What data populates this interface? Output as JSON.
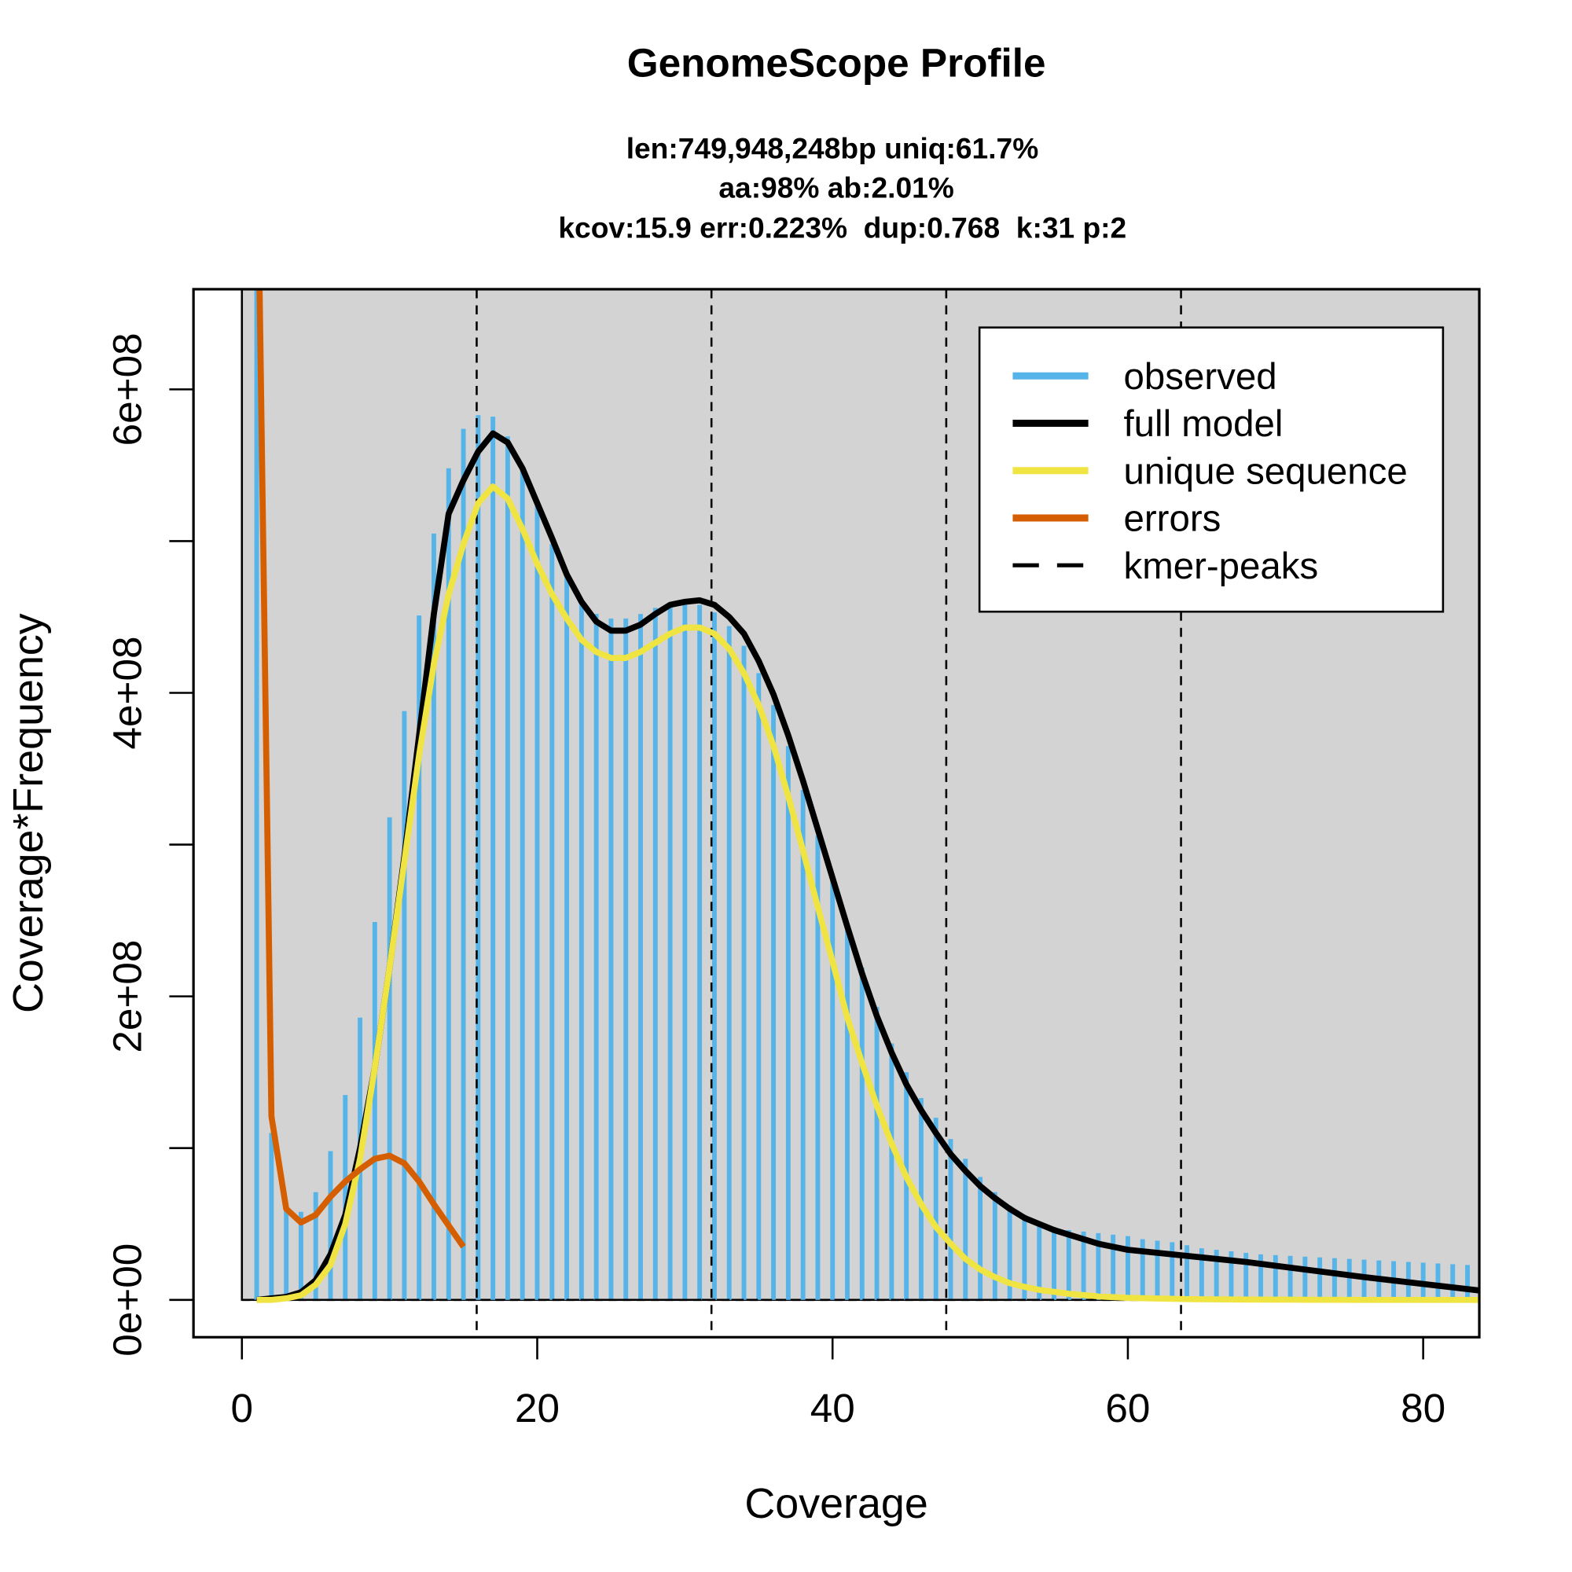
{
  "chart_data": {
    "type": "line",
    "title": "GenomeScope Profile",
    "subtitle": [
      "len:749,948,248bp uniq:61.7%",
      "aa:98% ab:2.01%",
      "kcov:15.9 err:0.223%  dup:0.768  k:31 p:2"
    ],
    "xlabel": "Coverage",
    "ylabel": "Coverage*Frequency",
    "xlim": [
      -3.28,
      83.8
    ],
    "ylim": [
      -24600000,
      666000000
    ],
    "xticks": [
      0,
      20,
      40,
      60,
      80
    ],
    "yticks": [
      {
        "value": 0,
        "label": "0e+00"
      },
      {
        "value": 200000000,
        "label": "2e+08"
      },
      {
        "value": 400000000,
        "label": "4e+08"
      },
      {
        "value": 600000000,
        "label": "6e+08"
      }
    ],
    "y_minor_ticks": [
      100000000,
      300000000,
      500000000
    ],
    "background": "#d3d3d3",
    "legend": "top-right",
    "series": [
      {
        "name": "observed",
        "color": "#56b4e9",
        "style": "bars",
        "x": [
          1,
          2,
          3,
          4,
          5,
          6,
          7,
          8,
          9,
          10,
          11,
          12,
          13,
          14,
          15,
          16,
          17,
          18,
          19,
          20,
          21,
          22,
          23,
          24,
          25,
          26,
          27,
          28,
          29,
          30,
          31,
          32,
          33,
          34,
          35,
          36,
          37,
          38,
          39,
          40,
          41,
          42,
          43,
          44,
          45,
          46,
          47,
          48,
          49,
          50,
          51,
          52,
          53,
          54,
          55,
          56,
          57,
          58,
          59,
          60,
          61,
          62,
          63,
          64,
          65,
          66,
          67,
          68,
          69,
          70,
          71,
          72,
          73,
          74,
          75,
          76,
          77,
          78,
          79,
          80,
          81,
          82,
          83
        ],
        "values": [
          700000000,
          110000000,
          60000000,
          58000000,
          71000000,
          98000000,
          135000000,
          186000000,
          249000000,
          318000000,
          388000000,
          451000000,
          505000000,
          548000000,
          574000000,
          583000000,
          582000000,
          569000000,
          548000000,
          524000000,
          498000000,
          477000000,
          460000000,
          452000000,
          449000000,
          449000000,
          452000000,
          456000000,
          458000000,
          460000000,
          458000000,
          453000000,
          444000000,
          431000000,
          413000000,
          392000000,
          365000000,
          336000000,
          306000000,
          276000000,
          246000000,
          219000000,
          193000000,
          169000000,
          150000000,
          133000000,
          120000000,
          106000000,
          93000000,
          81000000,
          71000000,
          62000000,
          56000000,
          50000000,
          48000000,
          46000000,
          45000000,
          44000000,
          43000000,
          42000000,
          40000000,
          39000000,
          38000000,
          36000000,
          34000000,
          33000000,
          32000000,
          31000000,
          30000000,
          29500000,
          29000000,
          28500000,
          28000000,
          27500000,
          27000000,
          26500000,
          26000000,
          25500000,
          25000000,
          24500000,
          24000000,
          23500000,
          23000000
        ]
      },
      {
        "name": "full model",
        "color": "#000000",
        "style": "line",
        "x": [
          1,
          2,
          3,
          4,
          5,
          6,
          7,
          8,
          9,
          10,
          11,
          12,
          13,
          14,
          15,
          16,
          17,
          18,
          19,
          20,
          21,
          22,
          23,
          24,
          25,
          26,
          27,
          28,
          29,
          30,
          31,
          32,
          33,
          34,
          35,
          36,
          37,
          38,
          39,
          40,
          41,
          42,
          43,
          44,
          45,
          46,
          47,
          48,
          49,
          50,
          51,
          52,
          53,
          54,
          55,
          56,
          57,
          58,
          59,
          60,
          64,
          68,
          72,
          76,
          80,
          84
        ],
        "values": [
          0,
          1000000,
          2000000,
          5000000,
          13000000,
          30000000,
          56000000,
          100000000,
          153000000,
          219000000,
          292000000,
          372000000,
          452000000,
          518000000,
          540000000,
          559000000,
          571000000,
          565000000,
          548000000,
          525000000,
          502000000,
          478000000,
          460000000,
          447000000,
          441000000,
          441000000,
          445000000,
          452000000,
          458000000,
          460000000,
          461000000,
          458000000,
          450000000,
          439000000,
          421000000,
          399000000,
          372000000,
          342000000,
          310000000,
          278000000,
          246000000,
          215000000,
          187000000,
          163000000,
          142000000,
          125000000,
          110000000,
          96000000,
          85000000,
          75000000,
          67000000,
          60000000,
          54000000,
          50000000,
          46000000,
          43000000,
          40000000,
          37000000,
          35000000,
          33000000,
          29000000,
          25000000,
          20000000,
          15000000,
          10500000,
          6000000
        ]
      },
      {
        "name": "unique sequence",
        "color": "#f0e442",
        "style": "line",
        "x": [
          1,
          2,
          3,
          4,
          5,
          6,
          7,
          8,
          9,
          10,
          11,
          12,
          13,
          14,
          15,
          16,
          17,
          18,
          19,
          20,
          21,
          22,
          23,
          24,
          25,
          26,
          27,
          28,
          29,
          30,
          31,
          32,
          33,
          34,
          35,
          36,
          37,
          38,
          39,
          40,
          41,
          42,
          43,
          44,
          45,
          46,
          47,
          48,
          49,
          50,
          51,
          52,
          53,
          54,
          55,
          56,
          58,
          60,
          64,
          68,
          72,
          76,
          80,
          84
        ],
        "values": [
          0,
          0,
          1000000,
          3000000,
          10000000,
          23000000,
          50000000,
          93000000,
          153000000,
          219000000,
          289000000,
          359000000,
          419000000,
          465000000,
          498000000,
          525000000,
          536000000,
          528000000,
          508000000,
          485000000,
          465000000,
          449000000,
          435000000,
          427000000,
          423000000,
          423000000,
          427000000,
          433000000,
          439000000,
          443000000,
          443000000,
          439000000,
          429000000,
          413000000,
          392000000,
          365000000,
          332000000,
          296000000,
          259000000,
          223000000,
          186000000,
          156000000,
          128000000,
          103000000,
          81000000,
          63000000,
          48000000,
          37000000,
          27000000,
          20000000,
          15000000,
          11000000,
          8600000,
          6600000,
          5300000,
          4000000,
          2300000,
          1300000,
          500000,
          200000,
          100000,
          0,
          0,
          0
        ]
      },
      {
        "name": "errors",
        "color": "#d55e00",
        "style": "line",
        "x": [
          1,
          2,
          3,
          4,
          5,
          6,
          7,
          8,
          9,
          10,
          11,
          12,
          13,
          14,
          15
        ],
        "values": [
          800000000,
          121000000,
          60000000,
          51000000,
          56000000,
          68000000,
          78000000,
          86000000,
          93000000,
          95000000,
          90000000,
          78000000,
          63000000,
          49000000,
          35000000
        ]
      }
    ],
    "kmer_peaks": {
      "name": "kmer-peaks",
      "color": "#000000",
      "x": [
        15.9,
        31.8,
        47.7,
        63.6
      ]
    }
  }
}
